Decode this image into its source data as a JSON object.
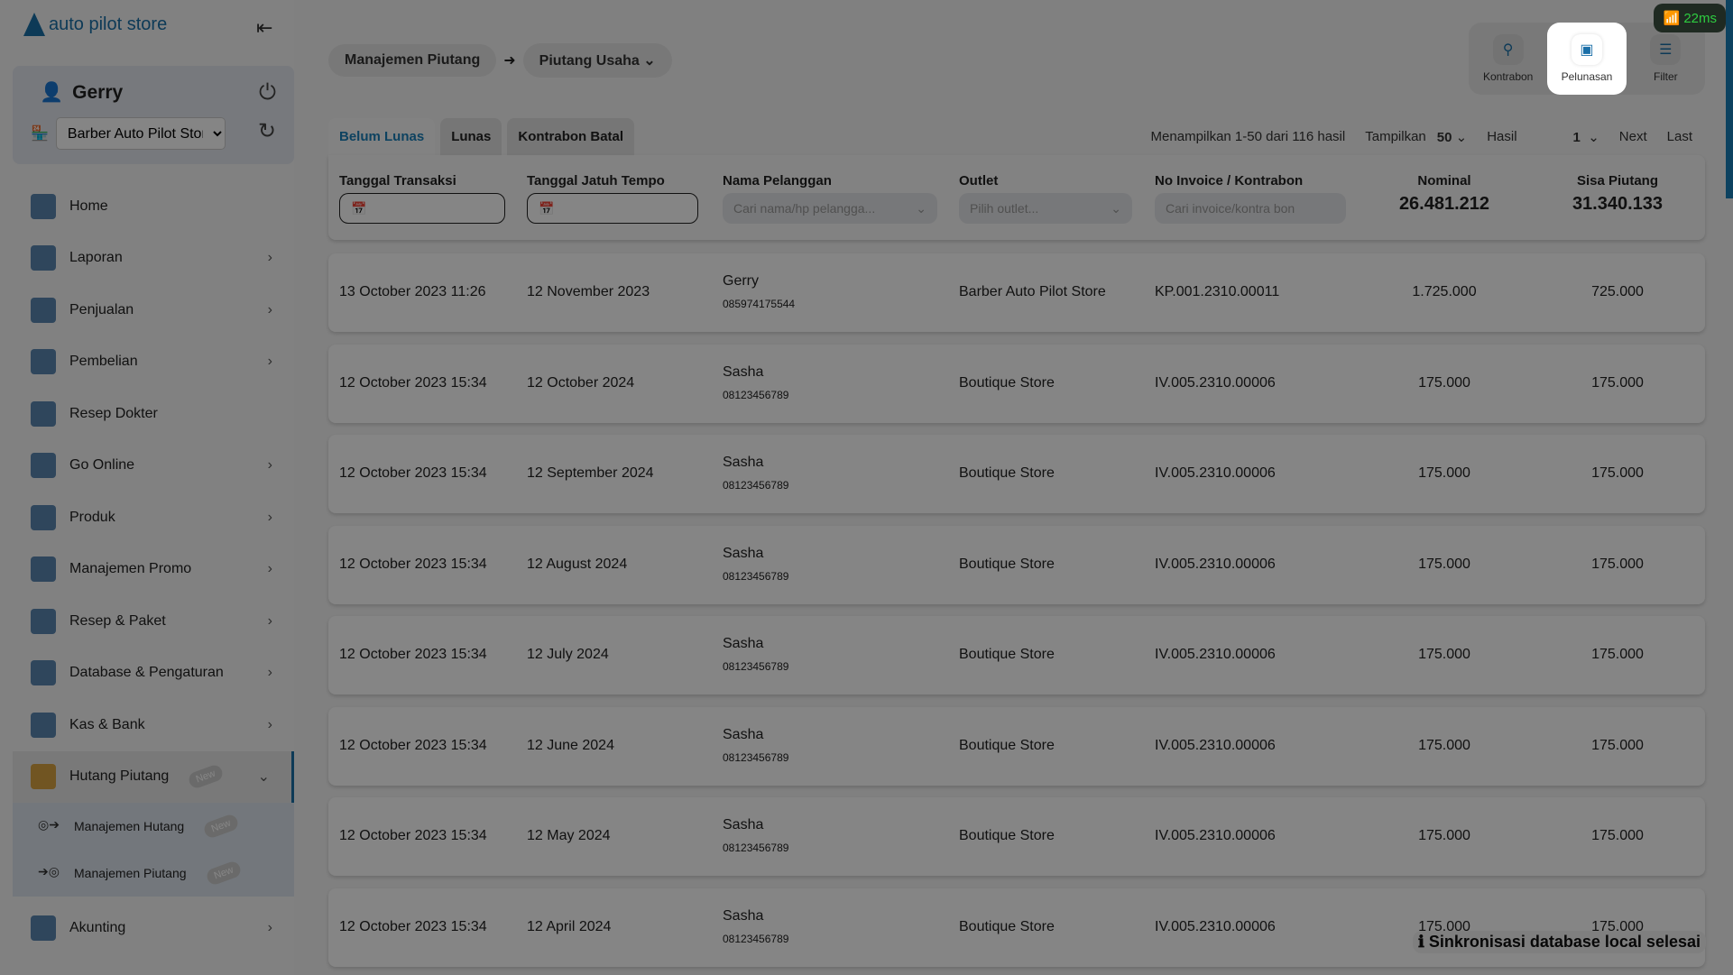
{
  "app": {
    "logo": "auto pilot store",
    "ping": "22ms",
    "toast": "Sinkronisasi database local selesai"
  },
  "user": {
    "name": "Gerry",
    "store": "Barber Auto Pilot Stor"
  },
  "sidebar": {
    "items": [
      {
        "label": "Home",
        "icon": "home-icon",
        "chevron": false
      },
      {
        "label": "Laporan",
        "icon": "report-icon",
        "chevron": true
      },
      {
        "label": "Penjualan",
        "icon": "cashier-icon",
        "chevron": true
      },
      {
        "label": "Pembelian",
        "icon": "purchase-icon",
        "chevron": true
      },
      {
        "label": "Resep Dokter",
        "icon": "prescription-icon",
        "chevron": false
      },
      {
        "label": "Go Online",
        "icon": "monitor-icon",
        "chevron": true
      },
      {
        "label": "Produk",
        "icon": "box-icon",
        "chevron": true
      },
      {
        "label": "Manajemen Promo",
        "icon": "tag-icon",
        "chevron": true
      },
      {
        "label": "Resep & Paket",
        "icon": "mortar-icon",
        "chevron": true
      },
      {
        "label": "Database & Pengaturan",
        "icon": "gear-icon",
        "chevron": true
      },
      {
        "label": "Kas & Bank",
        "icon": "safe-icon",
        "chevron": true
      }
    ],
    "active": {
      "label": "Hutang Piutang",
      "badge": "New"
    },
    "subitems": [
      {
        "label": "Manajemen Hutang",
        "badge": "New"
      },
      {
        "label": "Manajemen Piutang",
        "badge": "New"
      }
    ],
    "last": {
      "label": "Akunting"
    }
  },
  "breadcrumb": [
    "Manajemen Piutang",
    "Piutang Usaha"
  ],
  "actions": [
    {
      "label": "Kontrabon"
    },
    {
      "label": "Pelunasan"
    },
    {
      "label": "Filter"
    }
  ],
  "tabs": [
    "Belum Lunas",
    "Lunas",
    "Kontrabon Batal"
  ],
  "pager": {
    "summary": "Menampilkan 1-50 dari 116 hasil",
    "show_label": "Tampilkan",
    "show_value": "50",
    "result_label": "Hasil",
    "page": "1",
    "next": "Next",
    "last": "Last"
  },
  "filters": {
    "tanggal_transaksi": "Tanggal Transaksi",
    "tanggal_jatuh_tempo": "Tanggal Jatuh Tempo",
    "nama_pelanggan": "Nama Pelanggan",
    "nama_placeholder": "Cari nama/hp pelangga...",
    "outlet": "Outlet",
    "outlet_placeholder": "Pilih outlet...",
    "invoice": "No Invoice / Kontrabon",
    "invoice_placeholder": "Cari invoice/kontra bon",
    "nominal_label": "Nominal",
    "nominal_total": "26.481.212",
    "sisa_label": "Sisa Piutang",
    "sisa_total": "31.340.133"
  },
  "rows": [
    {
      "tgl": "13 October 2023 11:26",
      "tempo": "12 November 2023",
      "nama": "Gerry",
      "hp": "085974175544",
      "outlet": "Barber Auto Pilot Store",
      "invoice": "KP.001.2310.00011",
      "nominal": "1.725.000",
      "sisa": "725.000"
    },
    {
      "tgl": "12 October 2023 15:34",
      "tempo": "12 October 2024",
      "nama": "Sasha",
      "hp": "08123456789",
      "outlet": "Boutique Store",
      "invoice": "IV.005.2310.00006",
      "nominal": "175.000",
      "sisa": "175.000"
    },
    {
      "tgl": "12 October 2023 15:34",
      "tempo": "12 September 2024",
      "nama": "Sasha",
      "hp": "08123456789",
      "outlet": "Boutique Store",
      "invoice": "IV.005.2310.00006",
      "nominal": "175.000",
      "sisa": "175.000"
    },
    {
      "tgl": "12 October 2023 15:34",
      "tempo": "12 August 2024",
      "nama": "Sasha",
      "hp": "08123456789",
      "outlet": "Boutique Store",
      "invoice": "IV.005.2310.00006",
      "nominal": "175.000",
      "sisa": "175.000"
    },
    {
      "tgl": "12 October 2023 15:34",
      "tempo": "12 July 2024",
      "nama": "Sasha",
      "hp": "08123456789",
      "outlet": "Boutique Store",
      "invoice": "IV.005.2310.00006",
      "nominal": "175.000",
      "sisa": "175.000"
    },
    {
      "tgl": "12 October 2023 15:34",
      "tempo": "12 June 2024",
      "nama": "Sasha",
      "hp": "08123456789",
      "outlet": "Boutique Store",
      "invoice": "IV.005.2310.00006",
      "nominal": "175.000",
      "sisa": "175.000"
    },
    {
      "tgl": "12 October 2023 15:34",
      "tempo": "12 May 2024",
      "nama": "Sasha",
      "hp": "08123456789",
      "outlet": "Boutique Store",
      "invoice": "IV.005.2310.00006",
      "nominal": "175.000",
      "sisa": "175.000"
    },
    {
      "tgl": "12 October 2023 15:34",
      "tempo": "12 April 2024",
      "nama": "Sasha",
      "hp": "08123456789",
      "outlet": "Boutique Store",
      "invoice": "IV.005.2310.00006",
      "nominal": "175.000",
      "sisa": "175.000"
    }
  ]
}
